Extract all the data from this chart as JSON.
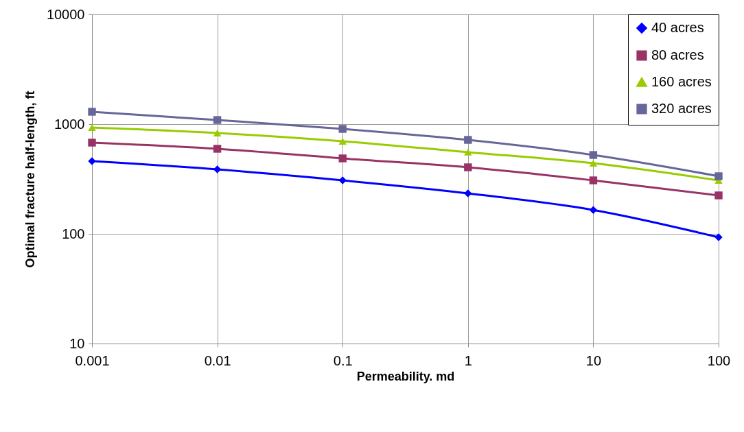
{
  "chart_data": {
    "type": "line",
    "xlabel": "Permeability. md",
    "ylabel": "Optimal fracture half-length, ft",
    "x": [
      0.001,
      0.01,
      0.1,
      1,
      10,
      100
    ],
    "series": [
      {
        "name": "40 acres",
        "color": "#0000ff",
        "marker": "diamond",
        "values": [
          460,
          387,
          307,
          234,
          165,
          93
        ]
      },
      {
        "name": "80 acres",
        "color": "#993366",
        "marker": "square",
        "values": [
          678,
          596,
          487,
          404,
          307,
          224
        ]
      },
      {
        "name": "160 acres",
        "color": "#99cc00",
        "marker": "triangle",
        "values": [
          930,
          830,
          698,
          555,
          440,
          307
        ]
      },
      {
        "name": "320 acres",
        "color": "#666699",
        "marker": "square",
        "values": [
          1296,
          1090,
          904,
          718,
          523,
          335
        ]
      }
    ],
    "log": "xy",
    "xlim": [
      0.001,
      100
    ],
    "xticks": [
      0.001,
      0.01,
      0.1,
      1,
      10,
      100
    ],
    "ylim": [
      10,
      10000
    ],
    "yticks": [
      10,
      100,
      1000,
      10000
    ],
    "grid": true,
    "legend": "top right",
    "line_style": "solid"
  }
}
